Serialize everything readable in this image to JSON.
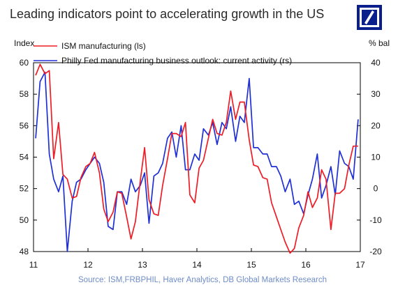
{
  "title": "Leading indicators point to accelerating growth in the US",
  "source": "Source: ISM,FRBPHIL, Haver Analytics, DB Global Markets Research",
  "colors": {
    "series_ism": "#ee1c25",
    "series_philly": "#1f2fd6",
    "logo_bg": "#0a1e8c",
    "source_text": "#6f8dc6"
  },
  "chart_data": {
    "type": "line",
    "ylabel_left": "Index",
    "ylabel_right": "% bal",
    "ylim_left": [
      48,
      60
    ],
    "ylim_right": [
      -20,
      40
    ],
    "xlim": [
      2011.0,
      2017.0
    ],
    "left_ticks": [
      "48",
      "50",
      "52",
      "54",
      "56",
      "58",
      "60"
    ],
    "right_ticks": [
      "-20",
      "-10",
      "0",
      "10",
      "20",
      "30",
      "40"
    ],
    "x_ticks": [
      "11",
      "12",
      "13",
      "14",
      "15",
      "16",
      "17"
    ],
    "legend_position": "top-left",
    "series": [
      {
        "name": "ISM manufacturing (ls)",
        "axis": "left",
        "x": [
          2011.04,
          2011.12,
          2011.21,
          2011.29,
          2011.37,
          2011.46,
          2011.54,
          2011.62,
          2011.71,
          2011.79,
          2011.87,
          2011.96,
          2012.04,
          2012.12,
          2012.21,
          2012.29,
          2012.37,
          2012.46,
          2012.54,
          2012.62,
          2012.71,
          2012.79,
          2012.87,
          2012.96,
          2013.04,
          2013.12,
          2013.21,
          2013.29,
          2013.37,
          2013.46,
          2013.54,
          2013.62,
          2013.71,
          2013.79,
          2013.87,
          2013.96,
          2014.04,
          2014.12,
          2014.21,
          2014.29,
          2014.37,
          2014.46,
          2014.54,
          2014.62,
          2014.71,
          2014.79,
          2014.87,
          2014.96,
          2015.04,
          2015.12,
          2015.21,
          2015.29,
          2015.37,
          2015.46,
          2015.54,
          2015.62,
          2015.71,
          2015.79,
          2015.87,
          2015.96,
          2016.04,
          2016.12,
          2016.21,
          2016.29,
          2016.37,
          2016.46,
          2016.54,
          2016.62,
          2016.71,
          2016.79,
          2016.87,
          2016.96
        ],
        "values": [
          59.2,
          59.9,
          59.3,
          59.5,
          53.9,
          56.2,
          52.9,
          52.6,
          51.4,
          51.5,
          52.7,
          53.4,
          53.6,
          54.3,
          53.0,
          50.7,
          49.9,
          50.5,
          51.8,
          51.7,
          50.2,
          48.8,
          49.9,
          52.5,
          54.6,
          51.3,
          50.4,
          50.3,
          52.2,
          53.9,
          55.5,
          55.5,
          55.3,
          56.2,
          51.6,
          51.1,
          53.3,
          53.8,
          55.2,
          56.4,
          55.5,
          55.4,
          56.2,
          58.2,
          56.4,
          57.5,
          57.5,
          55.1,
          53.5,
          53.4,
          52.7,
          52.6,
          51.1,
          50.2,
          49.4,
          48.6,
          47.9,
          48.2,
          49.5,
          50.3,
          51.8,
          50.8,
          51.4,
          53.2,
          52.6,
          49.4,
          51.7,
          51.7,
          52.0,
          53.5,
          54.7,
          54.7
        ]
      },
      {
        "name": "Philly Fed manufacturing business outlook: current activity (rs)",
        "axis": "right",
        "x": [
          2011.04,
          2011.12,
          2011.21,
          2011.29,
          2011.37,
          2011.46,
          2011.54,
          2011.62,
          2011.71,
          2011.79,
          2011.87,
          2011.96,
          2012.04,
          2012.12,
          2012.21,
          2012.29,
          2012.37,
          2012.46,
          2012.54,
          2012.62,
          2012.71,
          2012.79,
          2012.87,
          2012.96,
          2013.04,
          2013.12,
          2013.21,
          2013.29,
          2013.37,
          2013.46,
          2013.54,
          2013.62,
          2013.71,
          2013.79,
          2013.87,
          2013.96,
          2014.04,
          2014.12,
          2014.21,
          2014.29,
          2014.37,
          2014.46,
          2014.54,
          2014.62,
          2014.71,
          2014.79,
          2014.87,
          2014.96,
          2015.04,
          2015.12,
          2015.21,
          2015.29,
          2015.37,
          2015.46,
          2015.54,
          2015.62,
          2015.71,
          2015.79,
          2015.87,
          2015.96,
          2016.04,
          2016.12,
          2016.21,
          2016.29,
          2016.37,
          2016.46,
          2016.54,
          2016.62,
          2016.71,
          2016.79,
          2016.87,
          2016.96
        ],
        "values": [
          16,
          34,
          37,
          11,
          3,
          -1,
          4,
          -20,
          -4,
          2,
          3,
          6,
          8,
          10,
          8,
          2,
          -12,
          -13,
          -1,
          -1,
          -5,
          3,
          -1,
          1,
          5,
          -11,
          4,
          5,
          8,
          16,
          18,
          10,
          20,
          6,
          6,
          11,
          9,
          19,
          17,
          21,
          14,
          21,
          19,
          26,
          15,
          23,
          21,
          35,
          13,
          13,
          11,
          11,
          7,
          7,
          4,
          -1,
          3,
          -5,
          -4,
          -8,
          -2,
          3,
          11,
          -3,
          1,
          7,
          -2,
          12,
          8,
          7,
          3,
          22
        ]
      }
    ]
  }
}
